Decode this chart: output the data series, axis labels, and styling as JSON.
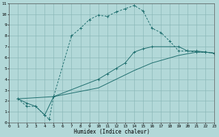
{
  "xlabel": "Humidex (Indice chaleur)",
  "bg_color": "#b2d8d8",
  "grid_color": "#8ab8b8",
  "line_color": "#1a6b6b",
  "xlim": [
    0,
    23
  ],
  "ylim": [
    0,
    11
  ],
  "xticks": [
    0,
    1,
    2,
    3,
    4,
    5,
    6,
    7,
    8,
    9,
    10,
    11,
    12,
    13,
    14,
    15,
    16,
    17,
    18,
    19,
    20,
    21,
    22,
    23
  ],
  "yticks": [
    0,
    1,
    2,
    3,
    4,
    5,
    6,
    7,
    8,
    9,
    10,
    11
  ],
  "series1_x": [
    1,
    2,
    3,
    4,
    4.5,
    5,
    7,
    8,
    9,
    10,
    11,
    12,
    13,
    14,
    15,
    16,
    17,
    18,
    19,
    20,
    21,
    22,
    23
  ],
  "series1_y": [
    2.2,
    1.5,
    1.5,
    0.7,
    0.3,
    2.4,
    8.0,
    8.7,
    9.5,
    9.9,
    9.8,
    10.2,
    10.5,
    10.8,
    10.3,
    8.7,
    8.3,
    7.5,
    6.6,
    6.6,
    6.5,
    6.5,
    6.4
  ],
  "series2_x": [
    1,
    2,
    3,
    4,
    5,
    10,
    11,
    12,
    13,
    14,
    15,
    16,
    19,
    20,
    21,
    22,
    23
  ],
  "series2_y": [
    2.2,
    1.8,
    1.5,
    0.7,
    2.4,
    4.0,
    4.5,
    5.0,
    5.5,
    6.5,
    6.8,
    7.0,
    7.0,
    6.6,
    6.6,
    6.5,
    6.4
  ],
  "series3_x": [
    1,
    5,
    10,
    14,
    16,
    19,
    21,
    22,
    23
  ],
  "series3_y": [
    2.2,
    2.4,
    3.2,
    4.8,
    5.5,
    6.2,
    6.5,
    6.5,
    6.4
  ]
}
